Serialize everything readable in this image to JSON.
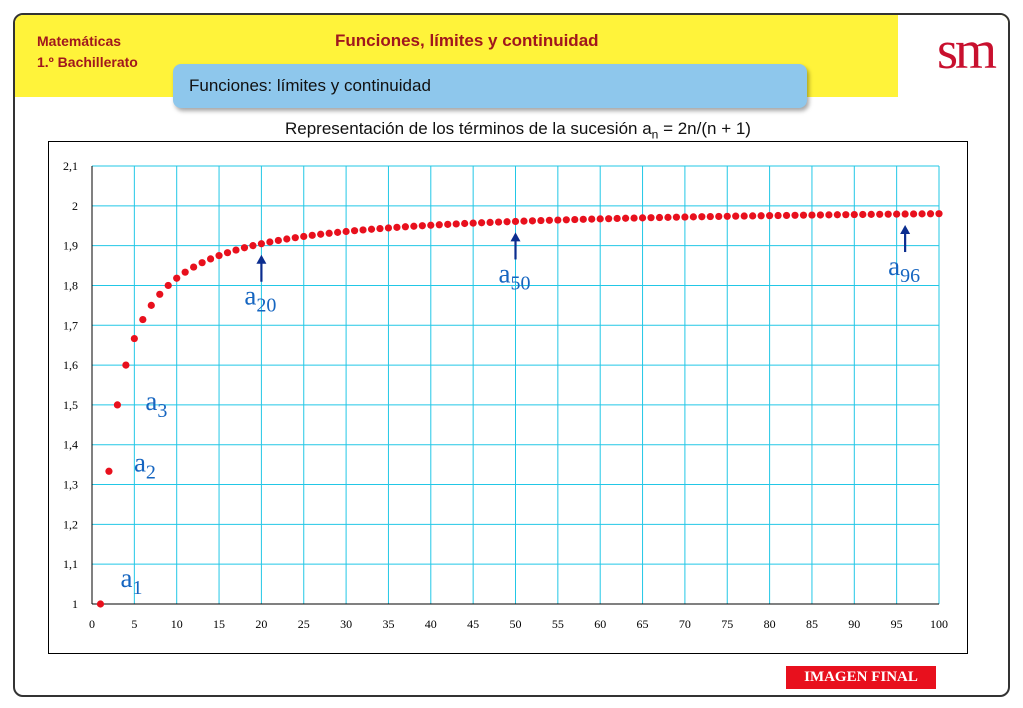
{
  "header": {
    "subject": "Matemáticas",
    "course": "1.º Bachillerato",
    "title": "Funciones, límites y continuidad",
    "logo": "sm"
  },
  "tab": {
    "label": "Funciones: límites y continuidad"
  },
  "chart_title": {
    "prefix": "Representación de los términos de la sucesión a",
    "sub": "n",
    "suffix": " = 2n/(n + 1)"
  },
  "chart_data": {
    "type": "scatter",
    "formula": "2n/(n + 1)",
    "xlim": [
      0,
      100
    ],
    "ylim": [
      1,
      2.1
    ],
    "grid": true,
    "x_ticks": [
      "0",
      "5",
      "10",
      "15",
      "20",
      "25",
      "30",
      "35",
      "40",
      "45",
      "50",
      "55",
      "60",
      "65",
      "70",
      "75",
      "80",
      "85",
      "90",
      "95",
      "100"
    ],
    "y_ticks": [
      "1",
      "1,1",
      "1,2",
      "1,3",
      "1,4",
      "1,5",
      "1,6",
      "1,7",
      "1,8",
      "1,9",
      "2",
      "2,1"
    ],
    "series": [
      {
        "n_from": 1,
        "n_to": 100,
        "color": "#e8101d"
      }
    ],
    "annotations": [
      {
        "base": "a",
        "sub": "1",
        "n": 1,
        "arrow": false
      },
      {
        "base": "a",
        "sub": "2",
        "n": 2,
        "arrow": false
      },
      {
        "base": "a",
        "sub": "3",
        "n": 3,
        "arrow": false
      },
      {
        "base": "a",
        "sub": "20",
        "n": 20,
        "arrow": true
      },
      {
        "base": "a",
        "sub": "50",
        "n": 50,
        "arrow": true
      },
      {
        "base": "a",
        "sub": "96",
        "n": 96,
        "arrow": true
      }
    ],
    "grid_color": "#22c7e6",
    "label_color": "#1565c0"
  },
  "footer": {
    "badge": "IMAGEN FINAL"
  }
}
